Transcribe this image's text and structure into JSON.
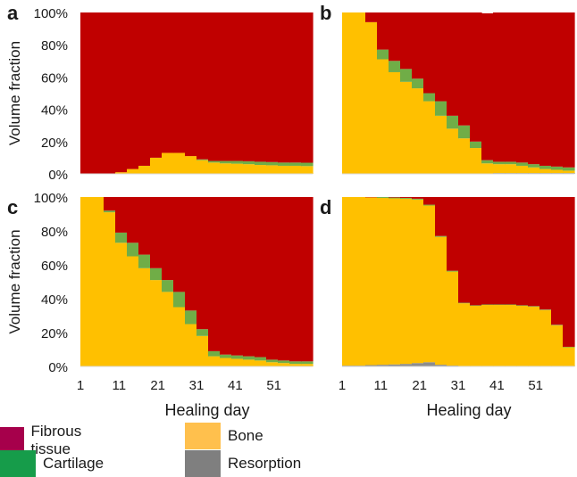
{
  "colors": {
    "fibrous": "#c00000",
    "cartilage": "#70ad47",
    "bone": "#ffc000",
    "resorption": "#8c8c8c"
  },
  "legend": {
    "items": [
      {
        "key": "fibrous",
        "label": "Fibrous tissue",
        "swatch": "#a6004b"
      },
      {
        "key": "bone",
        "label": "Bone",
        "swatch": "#ffc04d"
      },
      {
        "key": "cartilage",
        "label": "Cartilage",
        "swatch": "#169c4a"
      },
      {
        "key": "resorption",
        "label": "Resorption",
        "swatch": "#7f7f7f"
      }
    ]
  },
  "chart_data": [
    {
      "type": "area",
      "stacked": true,
      "panel": "a",
      "ylabel": "Volume fraction",
      "xlabel": "",
      "yticks": [
        "0%",
        "20%",
        "40%",
        "60%",
        "80%",
        "100%"
      ],
      "xticks": [],
      "ylim": [
        0,
        100
      ],
      "xlim": [
        1,
        61
      ],
      "x": [
        1,
        4,
        7,
        10,
        13,
        16,
        19,
        22,
        25,
        28,
        31,
        34,
        37,
        40,
        43,
        46,
        49,
        52,
        55,
        58
      ],
      "series": [
        {
          "name": "Resorption",
          "values": [
            0,
            0,
            0,
            0,
            0,
            0,
            0,
            0,
            0,
            0,
            0,
            0,
            0,
            0,
            0,
            0,
            0,
            0,
            0,
            0
          ]
        },
        {
          "name": "Bone",
          "values": [
            0,
            0,
            0,
            1,
            3,
            5,
            10,
            13,
            13,
            11,
            8.5,
            7,
            6.5,
            6.3,
            6,
            5.5,
            5.3,
            5,
            5,
            4.8
          ]
        },
        {
          "name": "Cartilage",
          "values": [
            0,
            0,
            0,
            0,
            0,
            0,
            0,
            0,
            0,
            0,
            0.5,
            1,
            1.5,
            1.7,
            1.8,
            2,
            2,
            2,
            2,
            2.1
          ]
        },
        {
          "name": "Fibrous tissue",
          "values": [
            100,
            100,
            100,
            99,
            97,
            95,
            90,
            87,
            87,
            89,
            91,
            92,
            92,
            92,
            92.2,
            92.5,
            92.7,
            93,
            93,
            93.1
          ]
        }
      ]
    },
    {
      "type": "area",
      "stacked": true,
      "panel": "b",
      "ylabel": "",
      "xlabel": "",
      "yticks": [],
      "xticks": [],
      "ylim": [
        0,
        100
      ],
      "xlim": [
        1,
        61
      ],
      "x": [
        1,
        4,
        7,
        10,
        13,
        16,
        19,
        22,
        25,
        28,
        31,
        34,
        37,
        40,
        43,
        46,
        49,
        52,
        55,
        58
      ],
      "series": [
        {
          "name": "Resorption",
          "values": [
            0,
            0,
            0,
            0,
            0,
            0,
            0,
            0,
            0,
            0,
            0,
            0,
            0,
            0.5,
            0.5,
            0.5,
            0.5,
            0.5,
            0.5,
            0.5
          ]
        },
        {
          "name": "Bone",
          "values": [
            100,
            100,
            94,
            71,
            63,
            57,
            53,
            45,
            36,
            28,
            22,
            16,
            6.5,
            5.5,
            5.5,
            4.5,
            3.5,
            2.5,
            2,
            1.5
          ]
        },
        {
          "name": "Cartilage",
          "values": [
            0,
            0,
            0,
            6,
            7,
            8,
            6,
            5,
            9,
            8,
            8,
            4,
            2,
            1.5,
            1.5,
            2,
            2,
            2,
            2,
            2
          ]
        },
        {
          "name": "Fibrous tissue",
          "values": [
            0,
            0,
            6,
            23,
            30,
            35,
            41,
            50,
            55,
            64,
            70,
            80,
            91,
            92.5,
            92.5,
            93,
            94,
            95,
            95.5,
            96
          ]
        }
      ]
    },
    {
      "type": "area",
      "stacked": true,
      "panel": "c",
      "ylabel": "Volume fraction",
      "xlabel": "Healing day",
      "yticks": [
        "0%",
        "20%",
        "40%",
        "60%",
        "80%",
        "100%"
      ],
      "xticks": [
        "1",
        "11",
        "21",
        "31",
        "41",
        "51"
      ],
      "ylim": [
        0,
        100
      ],
      "xlim": [
        1,
        61
      ],
      "x": [
        1,
        4,
        7,
        10,
        13,
        16,
        19,
        22,
        25,
        28,
        31,
        34,
        37,
        40,
        43,
        46,
        49,
        52,
        55,
        58
      ],
      "series": [
        {
          "name": "Resorption",
          "values": [
            0,
            0,
            0,
            0,
            0,
            0,
            0,
            0,
            0,
            0,
            0,
            0,
            0,
            0,
            0,
            0,
            0,
            0,
            0,
            0
          ]
        },
        {
          "name": "Bone",
          "values": [
            100,
            100,
            91,
            73,
            65,
            58,
            51,
            44,
            35,
            25,
            18,
            6,
            5,
            4.5,
            4,
            3.5,
            2.5,
            2,
            1.5,
            1.5
          ]
        },
        {
          "name": "Cartilage",
          "values": [
            0,
            0,
            1,
            6,
            8,
            8,
            7,
            7,
            9,
            8,
            4,
            3,
            2,
            2,
            2,
            2,
            1.5,
            1.5,
            1.5,
            1.5
          ]
        },
        {
          "name": "Fibrous tissue",
          "values": [
            0,
            0,
            8,
            21,
            27,
            34,
            42,
            49,
            56,
            67,
            78,
            91,
            93,
            93.5,
            94,
            94.5,
            96,
            96.5,
            97,
            97
          ]
        }
      ]
    },
    {
      "type": "area",
      "stacked": true,
      "panel": "d",
      "ylabel": "",
      "xlabel": "Healing day",
      "yticks": [],
      "xticks": [
        "1",
        "11",
        "21",
        "31",
        "41",
        "51"
      ],
      "ylim": [
        0,
        100
      ],
      "xlim": [
        1,
        61
      ],
      "x": [
        1,
        4,
        7,
        10,
        13,
        16,
        19,
        22,
        25,
        28,
        31,
        34,
        37,
        40,
        43,
        46,
        49,
        52,
        55,
        58
      ],
      "series": [
        {
          "name": "Resorption",
          "values": [
            0.5,
            0.5,
            0.8,
            1,
            1.2,
            1.5,
            2,
            2.5,
            1,
            0.5,
            0.3,
            0.3,
            0.3,
            0.3,
            0.3,
            0.3,
            0.3,
            0.3,
            0.3,
            0.3
          ]
        },
        {
          "name": "Bone",
          "values": [
            99.5,
            99.5,
            99,
            98.5,
            98,
            97.5,
            96.5,
            92.5,
            75.5,
            55.5,
            37,
            35.5,
            36,
            36,
            36,
            35.5,
            35,
            33,
            24,
            11
          ]
        },
        {
          "name": "Cartilage",
          "values": [
            0,
            0,
            0,
            0.5,
            0.5,
            0.5,
            0.5,
            0.5,
            0.5,
            0.5,
            0.3,
            0.3,
            0.3,
            0.3,
            0.3,
            0.3,
            0.3,
            0.3,
            0.3,
            0.3
          ]
        },
        {
          "name": "Fibrous tissue",
          "values": [
            0,
            0,
            0.2,
            0,
            0.3,
            0.5,
            1,
            4.5,
            23,
            43.5,
            62.4,
            63.9,
            63.4,
            63.4,
            63.4,
            63.9,
            64.4,
            66.4,
            75.4,
            88.4
          ]
        }
      ]
    }
  ]
}
